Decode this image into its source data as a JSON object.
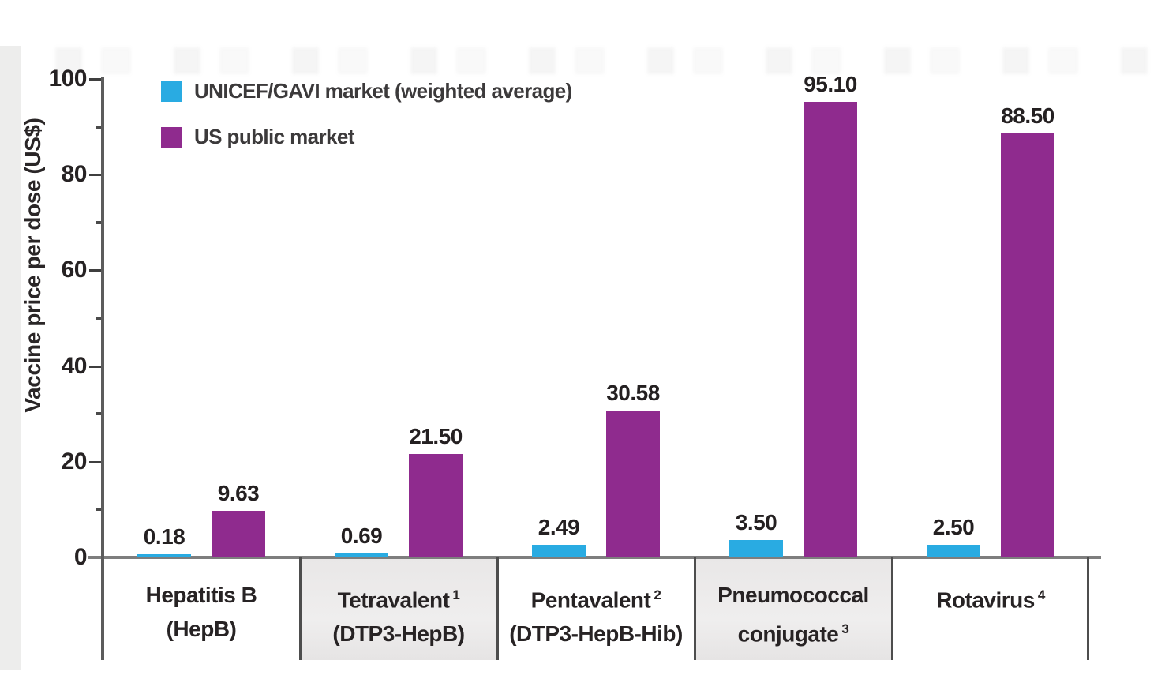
{
  "figure_name": "vaccine-price-comparison-bar-chart",
  "chart_data": {
    "type": "bar",
    "title": "",
    "ylabel": "Vaccine price per dose (US$)",
    "xlabel": "",
    "ylim": [
      0,
      100
    ],
    "yticks": [
      0,
      20,
      40,
      60,
      80,
      100
    ],
    "minor_yticks": [
      10,
      30,
      50,
      70,
      90
    ],
    "grid": false,
    "legend_position": "top-left",
    "categories": [
      "Hepatitis B (HepB)",
      "Tetravalent¹ (DTP3-HepB)",
      "Pentavalent² (DTP3-HepB-Hib)",
      "Pneumococcal conjugate³",
      "Rotavirus⁴"
    ],
    "series": [
      {
        "name": "UNICEF/GAVI market (weighted average)",
        "color": "#29ABE2",
        "values": [
          0.18,
          0.69,
          2.49,
          3.5,
          2.5
        ],
        "value_labels": [
          "0.18",
          "0.69",
          "2.49",
          "3.50",
          "2.50"
        ]
      },
      {
        "name": "US public market",
        "color": "#8F2B8E",
        "values": [
          9.63,
          21.5,
          30.58,
          95.1,
          88.5
        ],
        "value_labels": [
          "9.63",
          "21.50",
          "30.58",
          "95.10",
          "88.50"
        ]
      }
    ]
  },
  "ytick_labels": [
    "0",
    "20",
    "40",
    "60",
    "80",
    "100"
  ],
  "category_cells": [
    {
      "lines": [
        {
          "text": "Hepatitis B",
          "sup": ""
        },
        {
          "text": "(HepB)",
          "sup": ""
        }
      ],
      "shaded": false
    },
    {
      "lines": [
        {
          "text": "Tetravalent",
          "sup": "1"
        },
        {
          "text": "(DTP3-HepB)",
          "sup": ""
        }
      ],
      "shaded": true
    },
    {
      "lines": [
        {
          "text": "Pentavalent",
          "sup": "2"
        },
        {
          "text": "(DTP3-HepB-Hib)",
          "sup": ""
        }
      ],
      "shaded": false
    },
    {
      "lines": [
        {
          "text": "Pneumococcal",
          "sup": ""
        },
        {
          "text": "conjugate",
          "sup": "3"
        }
      ],
      "shaded": true
    },
    {
      "lines": [
        {
          "text": "Rotavirus",
          "sup": "4"
        }
      ],
      "shaded": false
    }
  ]
}
